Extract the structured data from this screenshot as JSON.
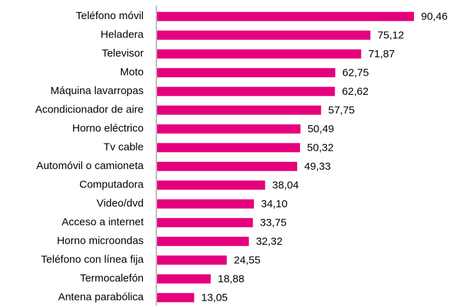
{
  "chart_data": {
    "type": "bar",
    "orientation": "horizontal",
    "categories": [
      "Teléfono móvil",
      "Heladera",
      "Televisor",
      "Moto",
      "Máquina lavarropas",
      "Acondicionador de aire",
      "Horno eléctrico",
      "Tv cable",
      "Automóvil o camioneta",
      "Computadora",
      "Video/dvd",
      "Acceso a internet",
      "Horno microondas",
      "Teléfono con línea fija",
      "Termocalefón",
      "Antena parabólica"
    ],
    "values": [
      90.46,
      75.12,
      71.87,
      62.75,
      62.62,
      57.75,
      50.49,
      50.32,
      49.33,
      38.04,
      34.1,
      33.75,
      32.32,
      24.55,
      18.88,
      13.05
    ],
    "value_labels": [
      "90,46",
      "75,12",
      "71,87",
      "62,75",
      "62,62",
      "57,75",
      "50,49",
      "50,32",
      "49,33",
      "38,04",
      "34,10",
      "33,75",
      "32,32",
      "24,55",
      "18,88",
      "13,05"
    ],
    "color": "#e5007d"
  }
}
